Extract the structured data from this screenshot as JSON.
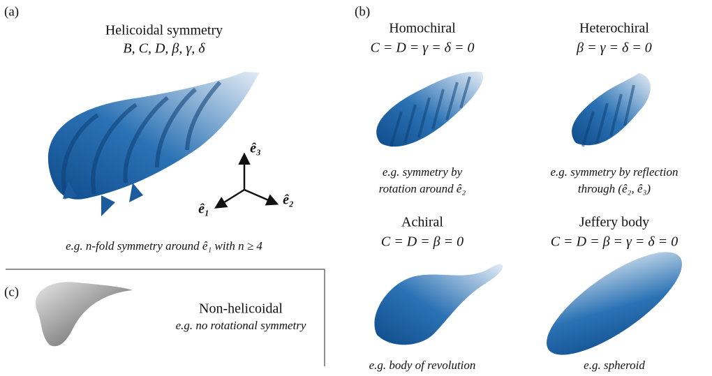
{
  "panel_a": {
    "label": "(a)",
    "title": "Helicoidal symmetry",
    "parameters": "B, C, D, β, γ, δ",
    "axes": {
      "e3": "ê₃",
      "e1": "ê₁",
      "e2": "ê₂"
    },
    "caption": "e.g. n-fold symmetry around ê₁ with n ≥ 4"
  },
  "panel_b": {
    "label": "(b)",
    "bodies": [
      {
        "name": "Homochiral",
        "condition": "C = D = γ = δ = 0",
        "caption": [
          "e.g. symmetry by",
          "rotation around ê₂"
        ]
      },
      {
        "name": "Heterochiral",
        "condition": "β = γ = δ = 0",
        "caption": [
          "e.g. symmetry by reflection",
          "through (ê₂, ê₃)"
        ]
      },
      {
        "name": "Achiral",
        "condition": "C = D = β = 0",
        "caption": [
          "e.g. body of revolution"
        ]
      },
      {
        "name": "Jeffery body",
        "condition": "C = D = β = γ = δ = 0",
        "caption": [
          "e.g. spheroid"
        ]
      }
    ]
  },
  "panel_c": {
    "label": "(c)",
    "title": "Non-helicoidal",
    "caption": "e.g. no rotational symmetry"
  }
}
